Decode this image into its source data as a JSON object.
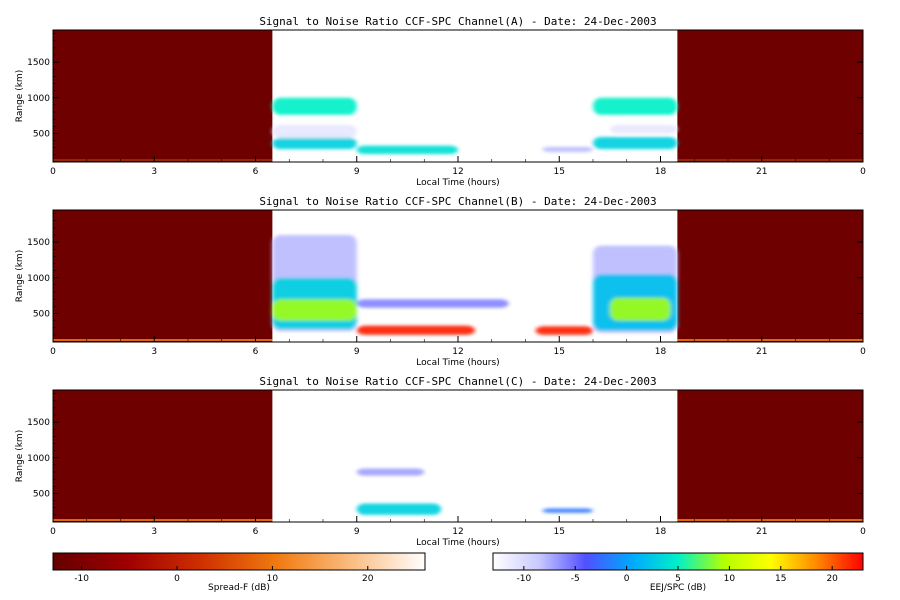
{
  "chart_data": [
    {
      "type": "heatmap",
      "title": "Signal to Noise Ratio CCF-SPC Channel(A) - Date: 24-Dec-2003",
      "xlabel": "Local Time (hours)",
      "ylabel": "Range (km)",
      "xticks": [
        "0",
        "3",
        "6",
        "9",
        "12",
        "15",
        "18",
        "21",
        "0"
      ],
      "yticks": [
        500,
        1000,
        1500
      ],
      "xlim": [
        0,
        24
      ],
      "ylim": [
        100,
        1950
      ],
      "no_data_regions": [
        [
          0,
          6.5
        ],
        [
          18.5,
          24
        ]
      ],
      "features": [
        {
          "x": [
            6.5,
            9.0
          ],
          "y": [
            760,
            1000
          ],
          "snr_db": 5
        },
        {
          "x": [
            6.5,
            9.0
          ],
          "y": [
            280,
            440
          ],
          "snr_db": 3
        },
        {
          "x": [
            6.5,
            9.0
          ],
          "y": [
            440,
            620
          ],
          "snr_db": -11
        },
        {
          "x": [
            9.0,
            12.0
          ],
          "y": [
            210,
            330
          ],
          "snr_db": 4
        },
        {
          "x": [
            14.5,
            16.0
          ],
          "y": [
            240,
            310
          ],
          "snr_db": -8
        },
        {
          "x": [
            16.0,
            18.5
          ],
          "y": [
            760,
            1000
          ],
          "snr_db": 5
        },
        {
          "x": [
            16.0,
            18.5
          ],
          "y": [
            280,
            450
          ],
          "snr_db": 3
        },
        {
          "x": [
            16.5,
            18.5
          ],
          "y": [
            500,
            620
          ],
          "snr_db": -11
        }
      ]
    },
    {
      "type": "heatmap",
      "title": "Signal to Noise Ratio CCF-SPC Channel(B) - Date: 24-Dec-2003",
      "xlabel": "Local Time (hours)",
      "ylabel": "Range (km)",
      "xticks": [
        "0",
        "3",
        "6",
        "9",
        "12",
        "15",
        "18",
        "21",
        "0"
      ],
      "yticks": [
        500,
        1000,
        1500
      ],
      "xlim": [
        0,
        24
      ],
      "ylim": [
        100,
        1950
      ],
      "no_data_regions": [
        [
          0,
          6.5
        ],
        [
          18.5,
          24
        ]
      ],
      "features": [
        {
          "x": [
            6.5,
            9.0
          ],
          "y": [
            250,
            1600
          ],
          "snr_db": -8
        },
        {
          "x": [
            6.5,
            9.0
          ],
          "y": [
            280,
            1000
          ],
          "snr_db": 3
        },
        {
          "x": [
            6.5,
            9.0
          ],
          "y": [
            400,
            700
          ],
          "snr_db": 9
        },
        {
          "x": [
            9.0,
            12.5
          ],
          "y": [
            200,
            330
          ],
          "snr_db": 22
        },
        {
          "x": [
            9.0,
            13.5
          ],
          "y": [
            580,
            700
          ],
          "snr_db": -6
        },
        {
          "x": [
            14.3,
            16.0
          ],
          "y": [
            200,
            320
          ],
          "snr_db": 22
        },
        {
          "x": [
            16.0,
            18.5
          ],
          "y": [
            230,
            1450
          ],
          "snr_db": -8
        },
        {
          "x": [
            16.0,
            18.5
          ],
          "y": [
            260,
            1050
          ],
          "snr_db": 2
        },
        {
          "x": [
            16.5,
            18.3
          ],
          "y": [
            400,
            720
          ],
          "snr_db": 9
        }
      ]
    },
    {
      "type": "heatmap",
      "title": "Signal to Noise Ratio CCF-SPC Channel(C) - Date: 24-Dec-2003",
      "xlabel": "Local Time (hours)",
      "ylabel": "Range (km)",
      "xticks": [
        "0",
        "3",
        "6",
        "9",
        "12",
        "15",
        "18",
        "21",
        "0"
      ],
      "yticks": [
        500,
        1000,
        1500
      ],
      "xlim": [
        0,
        24
      ],
      "ylim": [
        100,
        1950
      ],
      "no_data_regions": [
        [
          0,
          6.5
        ],
        [
          18.5,
          24
        ]
      ],
      "features": [
        {
          "x": [
            9.0,
            11.0
          ],
          "y": [
            750,
            850
          ],
          "snr_db": -7
        },
        {
          "x": [
            9.0,
            11.5
          ],
          "y": [
            200,
            360
          ],
          "snr_db": 3
        },
        {
          "x": [
            14.5,
            16.0
          ],
          "y": [
            230,
            290
          ],
          "snr_db": -2
        }
      ]
    }
  ],
  "colorbars": [
    {
      "label": "Spread-F (dB)",
      "ticks": [
        "-10",
        "0",
        "10",
        "20"
      ],
      "range": [
        -13,
        26
      ]
    },
    {
      "label": "EEJ/SPC (dB)",
      "ticks": [
        "-10",
        "-5",
        "0",
        "5",
        "10",
        "15",
        "20"
      ],
      "range": [
        -13,
        23
      ]
    }
  ],
  "colors": {
    "nodata_fill": "#6e0000",
    "spreadf_scale": [
      "#650000",
      "#a00000",
      "#cf3000",
      "#f07a10",
      "#fbbc80",
      "#ffffff"
    ],
    "eej_scale": [
      "#ffffff",
      "#c8c8ff",
      "#5050ff",
      "#00a8ff",
      "#00f0c8",
      "#b4ff00",
      "#ffff00",
      "#ff8800",
      "#ff0000"
    ]
  }
}
